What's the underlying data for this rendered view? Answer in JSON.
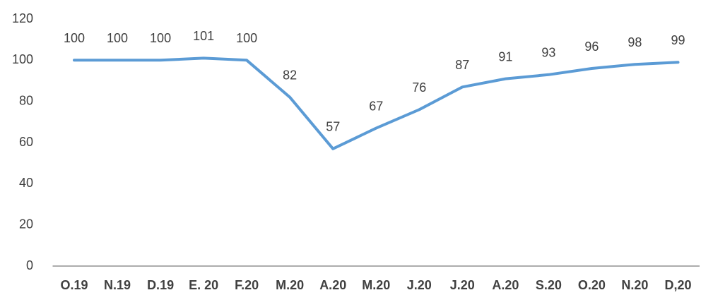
{
  "chart_data": {
    "type": "line",
    "categories": [
      "O.19",
      "N.19",
      "D.19",
      "E. 20",
      "F.20",
      "M.20",
      "A.20",
      "M.20",
      "J.20",
      "J.20",
      "A.20",
      "S.20",
      "O.20",
      "N.20",
      "D,20"
    ],
    "values": [
      100,
      100,
      100,
      101,
      100,
      82,
      57,
      67,
      76,
      87,
      91,
      93,
      96,
      98,
      99
    ],
    "color": "#5b9bd5",
    "ylim": [
      0,
      120
    ],
    "yticks": [
      0,
      20,
      40,
      60,
      80,
      100,
      120
    ],
    "grid": false
  }
}
